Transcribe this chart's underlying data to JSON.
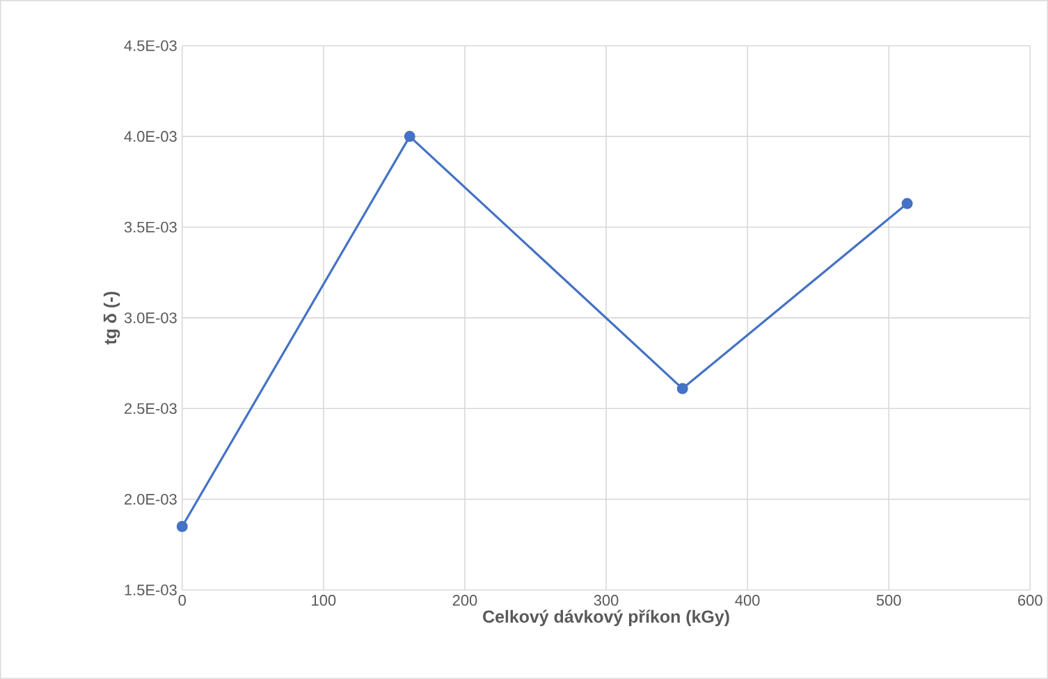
{
  "chart_data": {
    "type": "line",
    "xlabel": "Celkový dávkový příkon (kGy)",
    "ylabel": "tg δ (-)",
    "x": [
      0,
      161,
      354,
      513
    ],
    "series": [
      {
        "color": "#4472c4",
        "values": [
          0.00185,
          0.004,
          0.00261,
          0.00363
        ]
      }
    ],
    "xlim": [
      0,
      600
    ],
    "xticks": [
      0,
      100,
      200,
      300,
      400,
      500,
      600
    ],
    "ylim": [
      0.0015,
      0.0045
    ],
    "yticks": [
      {
        "value": 0.0015,
        "label": "1.5E-03"
      },
      {
        "value": 0.002,
        "label": "2.0E-03"
      },
      {
        "value": 0.0025,
        "label": "2.5E-03"
      },
      {
        "value": 0.003,
        "label": "3.0E-03"
      },
      {
        "value": 0.0035,
        "label": "3.5E-03"
      },
      {
        "value": 0.004,
        "label": "4.0E-03"
      },
      {
        "value": 0.0045,
        "label": "4.5E-03"
      }
    ],
    "grid": true,
    "marker": "circle",
    "line_style": "solid"
  }
}
